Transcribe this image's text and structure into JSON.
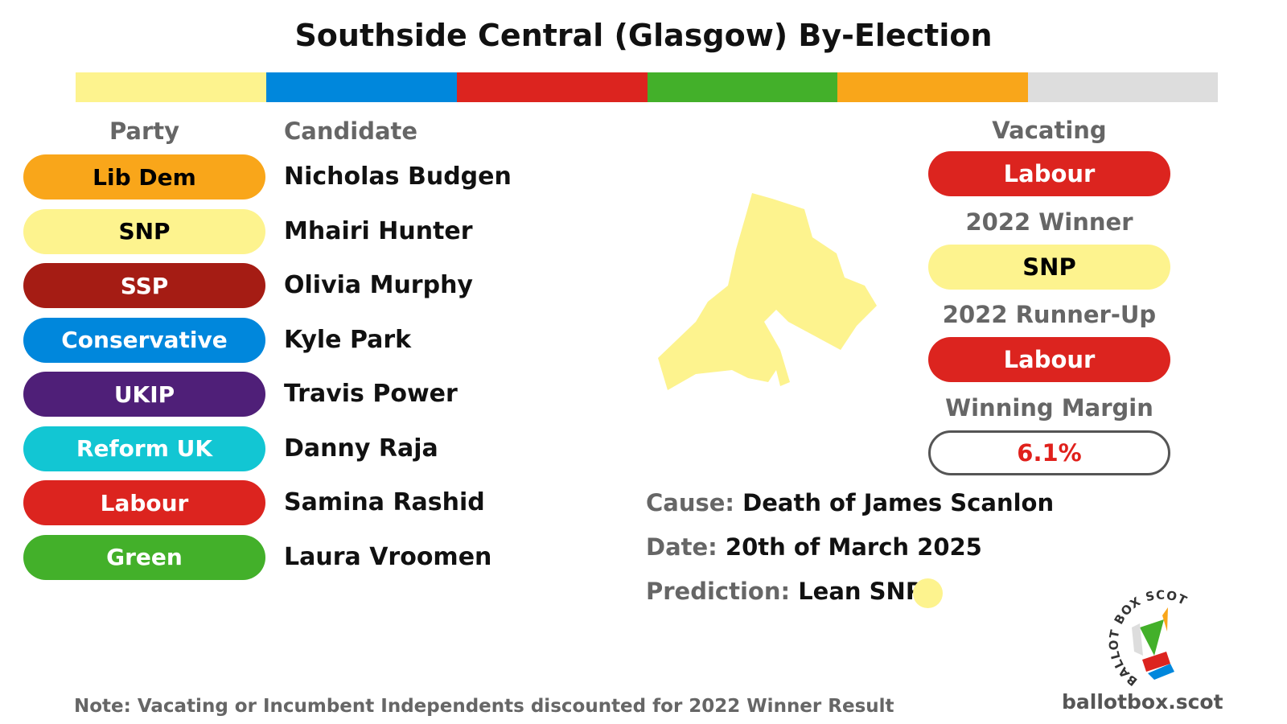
{
  "header": {
    "title": "Southside Central (Glasgow) By-Election"
  },
  "table": {
    "headers": [
      "Party",
      "Candidate"
    ],
    "rows": [
      {
        "party": "Lib Dem",
        "candidate": "Nicholas Budgen",
        "color": "#f9a61a",
        "text_color": "#000000"
      },
      {
        "party": "SNP",
        "candidate": "Mhairi Hunter",
        "color": "#fdf38e",
        "text_color": "#000000"
      },
      {
        "party": "SSP",
        "candidate": "Olivia Murphy",
        "color": "#a51c14",
        "text_color": "#ffffff"
      },
      {
        "party": "Conservative",
        "candidate": "Kyle Park",
        "color": "#0087dc",
        "text_color": "#ffffff"
      },
      {
        "party": "UKIP",
        "candidate": "Travis Power",
        "color": "#4f1f78",
        "text_color": "#ffffff"
      },
      {
        "party": "Reform UK",
        "candidate": "Danny Raja",
        "color": "#12c6d3",
        "text_color": "#ffffff"
      },
      {
        "party": "Labour",
        "candidate": "Samina Rashid",
        "color": "#dc241f",
        "text_color": "#ffffff"
      },
      {
        "party": "Green",
        "candidate": "Laura Vroomen",
        "color": "#43b02a",
        "text_color": "#ffffff"
      }
    ]
  },
  "summary": {
    "vacating_label": "Vacating",
    "vacating": "Labour",
    "winner_label": "2022 Winner",
    "winner": "SNP",
    "runner_up_label": "2022 Runner-Up",
    "runner_up": "Labour",
    "margin_label": "Winning Margin",
    "margin": "6.1%"
  },
  "details": [
    {
      "label": "Cause:",
      "value": "Death of James Scanlon"
    },
    {
      "label": "Date:",
      "value": "20th of March 2025"
    },
    {
      "label": "Prediction:",
      "value": "Lean SNP"
    }
  ],
  "note": "Note: Vacating  or Incumbent Independents discounted for 2022 Winner Result",
  "logo": {
    "ring_text": "BALLOT BOX SCOTLAND",
    "url": "ballotbox.scot"
  }
}
